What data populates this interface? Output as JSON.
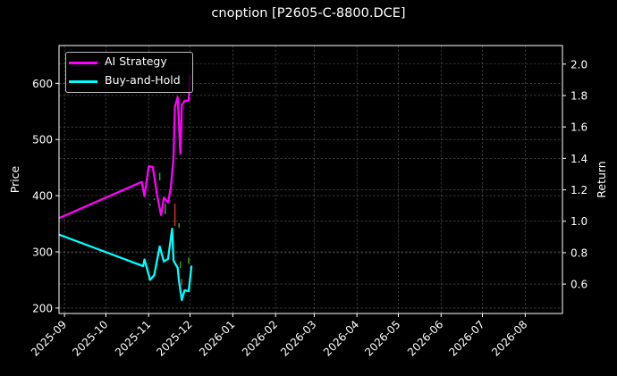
{
  "chart_data": {
    "type": "line",
    "title": "cnoption [P2605-C-8800.DCE]",
    "xlabel": "",
    "ylabel": "Price",
    "ylabel_right": "Return",
    "xlim": [
      "2025-08-28",
      "2026-08-28"
    ],
    "ylim": [
      190.3,
      667.2
    ],
    "ylim_right": [
      0.413,
      2.118
    ],
    "grid": true,
    "legend_position": "upper left",
    "x_ticks": [
      {
        "date": "2025-09-01",
        "label": "2025-09"
      },
      {
        "date": "2025-10-01",
        "label": "2025-10"
      },
      {
        "date": "2025-11-01",
        "label": "2025-11"
      },
      {
        "date": "2025-12-01",
        "label": "2025-12"
      },
      {
        "date": "2026-01-01",
        "label": "2026-01"
      },
      {
        "date": "2026-02-01",
        "label": "2026-02"
      },
      {
        "date": "2026-03-01",
        "label": "2026-03"
      },
      {
        "date": "2026-04-01",
        "label": "2026-04"
      },
      {
        "date": "2026-05-01",
        "label": "2026-05"
      },
      {
        "date": "2026-06-01",
        "label": "2026-06"
      },
      {
        "date": "2026-07-01",
        "label": "2026-07"
      },
      {
        "date": "2026-08-01",
        "label": "2026-08"
      }
    ],
    "y_ticks_left": [
      200,
      300,
      400,
      500,
      600
    ],
    "y_ticks_right": [
      "0.6",
      "0.8",
      "1.0",
      "1.2",
      "1.4",
      "1.6",
      "1.8",
      "2.0"
    ],
    "legend": [
      {
        "name": "AI Strategy",
        "color": "#ff00ff"
      },
      {
        "name": "Buy-and-Hold",
        "color": "#00ffff"
      }
    ],
    "series": [
      {
        "name": "AI Strategy",
        "axis": "right",
        "color": "#ff00ff",
        "points": [
          [
            "2025-08-28",
            1.02
          ],
          [
            "2025-10-27",
            1.25
          ],
          [
            "2025-10-29",
            1.16
          ],
          [
            "2025-11-01",
            1.35
          ],
          [
            "2025-11-04",
            1.345
          ],
          [
            "2025-11-07",
            1.17
          ],
          [
            "2025-11-10",
            1.04
          ],
          [
            "2025-11-12",
            1.15
          ],
          [
            "2025-11-15",
            1.12
          ],
          [
            "2025-11-17",
            1.21
          ],
          [
            "2025-11-19",
            1.4
          ],
          [
            "2025-11-20",
            1.73
          ],
          [
            "2025-11-22",
            1.79
          ],
          [
            "2025-11-24",
            1.43
          ],
          [
            "2025-11-25",
            1.74
          ],
          [
            "2025-11-27",
            1.765
          ],
          [
            "2025-11-30",
            1.77
          ],
          [
            "2025-12-01",
            1.93
          ]
        ]
      },
      {
        "name": "Buy-and-Hold",
        "axis": "right",
        "color": "#00ffff",
        "points": [
          [
            "2025-08-28",
            0.915
          ],
          [
            "2025-10-28",
            0.714
          ],
          [
            "2025-10-29",
            0.756
          ],
          [
            "2025-11-02",
            0.627
          ],
          [
            "2025-11-05",
            0.656
          ],
          [
            "2025-11-09",
            0.839
          ],
          [
            "2025-11-12",
            0.744
          ],
          [
            "2025-11-15",
            0.76
          ],
          [
            "2025-11-18",
            0.953
          ],
          [
            "2025-11-19",
            0.75
          ],
          [
            "2025-11-22",
            0.703
          ],
          [
            "2025-11-23",
            0.618
          ],
          [
            "2025-11-25",
            0.498
          ],
          [
            "2025-11-27",
            0.561
          ],
          [
            "2025-11-30",
            0.555
          ],
          [
            "2025-12-02",
            0.712
          ]
        ]
      }
    ],
    "candles": [
      {
        "date": "2025-11-02",
        "low": 382,
        "high": 385,
        "dir": "up"
      },
      {
        "date": "2025-11-05",
        "low": 392,
        "high": 395,
        "dir": "up"
      },
      {
        "date": "2025-11-09",
        "low": 427,
        "high": 441,
        "dir": "up"
      },
      {
        "date": "2025-11-13",
        "low": 367,
        "high": 386,
        "dir": "up"
      },
      {
        "date": "2025-11-20",
        "low": 346,
        "high": 386,
        "dir": "down"
      },
      {
        "date": "2025-11-23",
        "low": 343,
        "high": 351,
        "dir": "up"
      },
      {
        "date": "2025-11-24",
        "low": 271,
        "high": 283,
        "dir": "up"
      },
      {
        "date": "2025-11-25",
        "low": 240,
        "high": 252,
        "dir": "down"
      },
      {
        "date": "2025-11-30",
        "low": 279,
        "high": 290,
        "dir": "up"
      }
    ],
    "colors": {
      "background": "#000000",
      "axes": "#ffffff",
      "grid": "#5a5a5a",
      "candle_up": "#2ca02c",
      "candle_down": "#d62728"
    }
  }
}
